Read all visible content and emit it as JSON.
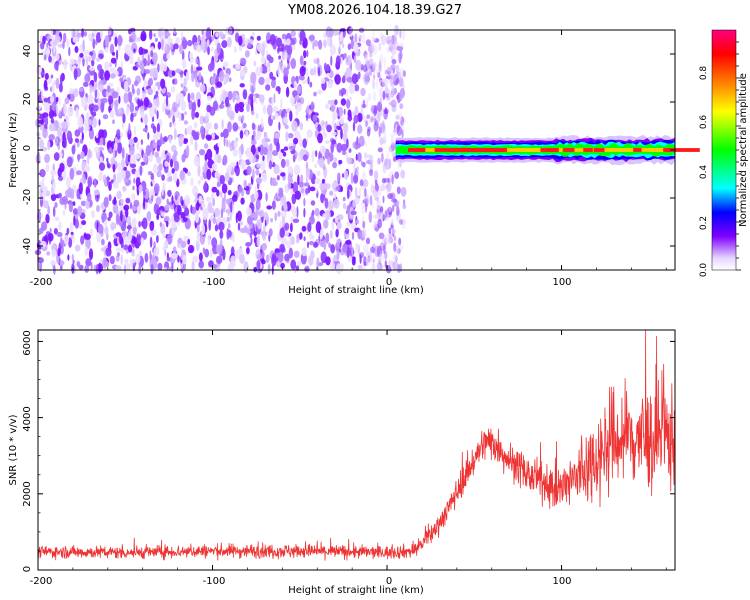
{
  "figure": {
    "title": "YM08.2026.104.18.39.G27"
  },
  "chart_data": [
    {
      "type": "heatmap",
      "xlabel": "Height of straight line (km)",
      "ylabel": "Frequency (Hz)",
      "xlim": [
        -200,
        165
      ],
      "ylim": [
        -50,
        50
      ],
      "xticks": [
        -200,
        -100,
        0,
        100
      ],
      "yticks": [
        -40,
        -20,
        0,
        20,
        40
      ],
      "colorbar": {
        "label": "Normalized spectral amplitude",
        "range": [
          0,
          1
        ],
        "ticks": [
          0.0,
          0.2,
          0.4,
          0.6,
          0.8
        ],
        "tick_labels": [
          "0.0",
          "0.2",
          "0.4",
          "0.6",
          "0.8"
        ],
        "colormap": [
          "#ffffff",
          "#8000ff",
          "#0000ff",
          "#00ffff",
          "#00ff00",
          "#ffff00",
          "#ff8000",
          "#ff0000",
          "#ff0080"
        ]
      },
      "regions": [
        {
          "x": [
            -200,
            10
          ],
          "y": [
            -50,
            50
          ],
          "description_value": "scattered low-amplitude noise",
          "amplitude_range": [
            0.0,
            0.3
          ]
        },
        {
          "x": [
            5,
            165
          ],
          "y": [
            -2,
            2
          ],
          "description_value": "narrow carrier line at 0 Hz",
          "amplitude_range": [
            0.1,
            1.0
          ]
        }
      ],
      "grid": false
    },
    {
      "type": "line",
      "xlabel": "Height of straight line (km)",
      "ylabel": "SNR (10 * v/v)",
      "xlim": [
        -200,
        165
      ],
      "ylim": [
        0,
        6300
      ],
      "xticks": [
        -200,
        -100,
        0,
        100
      ],
      "yticks": [
        0,
        2000,
        4000,
        6000
      ],
      "series": [
        {
          "color": "#ee3333",
          "envelope_points": [
            {
              "x": -200,
              "mean": 480,
              "noise": 220
            },
            {
              "x": -150,
              "mean": 460,
              "noise": 230
            },
            {
              "x": -100,
              "mean": 500,
              "noise": 250
            },
            {
              "x": -50,
              "mean": 500,
              "noise": 260
            },
            {
              "x": 0,
              "mean": 460,
              "noise": 240
            },
            {
              "x": 15,
              "mean": 500,
              "noise": 260
            },
            {
              "x": 25,
              "mean": 900,
              "noise": 350
            },
            {
              "x": 35,
              "mean": 1600,
              "noise": 450
            },
            {
              "x": 45,
              "mean": 2500,
              "noise": 550
            },
            {
              "x": 55,
              "mean": 3300,
              "noise": 650
            },
            {
              "x": 60,
              "mean": 3400,
              "noise": 700
            },
            {
              "x": 70,
              "mean": 2900,
              "noise": 650
            },
            {
              "x": 80,
              "mean": 2500,
              "noise": 650
            },
            {
              "x": 90,
              "mean": 2300,
              "noise": 700
            },
            {
              "x": 100,
              "mean": 2100,
              "noise": 900
            },
            {
              "x": 110,
              "mean": 2500,
              "noise": 1300
            },
            {
              "x": 120,
              "mean": 3000,
              "noise": 1600
            },
            {
              "x": 130,
              "mean": 3400,
              "noise": 1900
            },
            {
              "x": 140,
              "mean": 3500,
              "noise": 2000
            },
            {
              "x": 150,
              "mean": 3400,
              "noise": 2000
            },
            {
              "x": 165,
              "mean": 3500,
              "noise": 2000
            }
          ]
        }
      ],
      "grid": false
    }
  ]
}
